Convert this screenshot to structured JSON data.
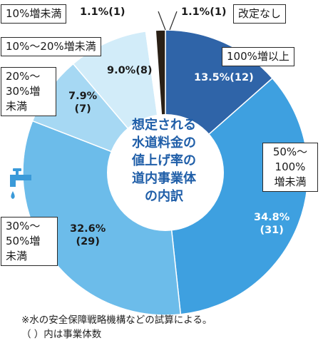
{
  "chart_data": {
    "type": "pie",
    "center_title": "想定される\n水道料金の\n値上げ率の\n道内事業体\nの内訳",
    "slices": [
      {
        "label": "100%増以上",
        "percent": 13.5,
        "count": 12,
        "value_label": "13.5%(12)",
        "color": "#2f64a8"
      },
      {
        "label": "50%～\n100%\n増未満",
        "percent": 34.8,
        "count": 31,
        "value_label": "34.8%\n(31)",
        "color": "#3ea0e0"
      },
      {
        "label": "30%～\n50%増\n未満",
        "percent": 32.6,
        "count": 29,
        "value_label": "32.6%\n(29)",
        "color": "#6cbcea"
      },
      {
        "label": "20%～\n30%増\n未満",
        "percent": 7.9,
        "count": 7,
        "value_label": "7.9%\n(7)",
        "color": "#a6d8f3"
      },
      {
        "label": "10%～20%増未満",
        "percent": 9.0,
        "count": 8,
        "value_label": "9.0%(8)",
        "color": "#d2ecf9"
      },
      {
        "label": "10%増未満",
        "percent": 1.1,
        "count": 1,
        "value_label": "1.1%(1)",
        "color": "#ffffff"
      },
      {
        "label": "改定なし",
        "percent": 1.1,
        "count": 1,
        "value_label": "1.1%(1)",
        "color": "#2a2016"
      }
    ],
    "footnote": "※水の安全保障戦略機構などの試算による。\n（ ）内は事業体数"
  },
  "colors": {
    "center_text": "#1f5ea8",
    "faucet_icon": "#3a9ad9",
    "outline": "#2a2a2a"
  },
  "icons": {
    "faucet": "faucet-icon"
  }
}
